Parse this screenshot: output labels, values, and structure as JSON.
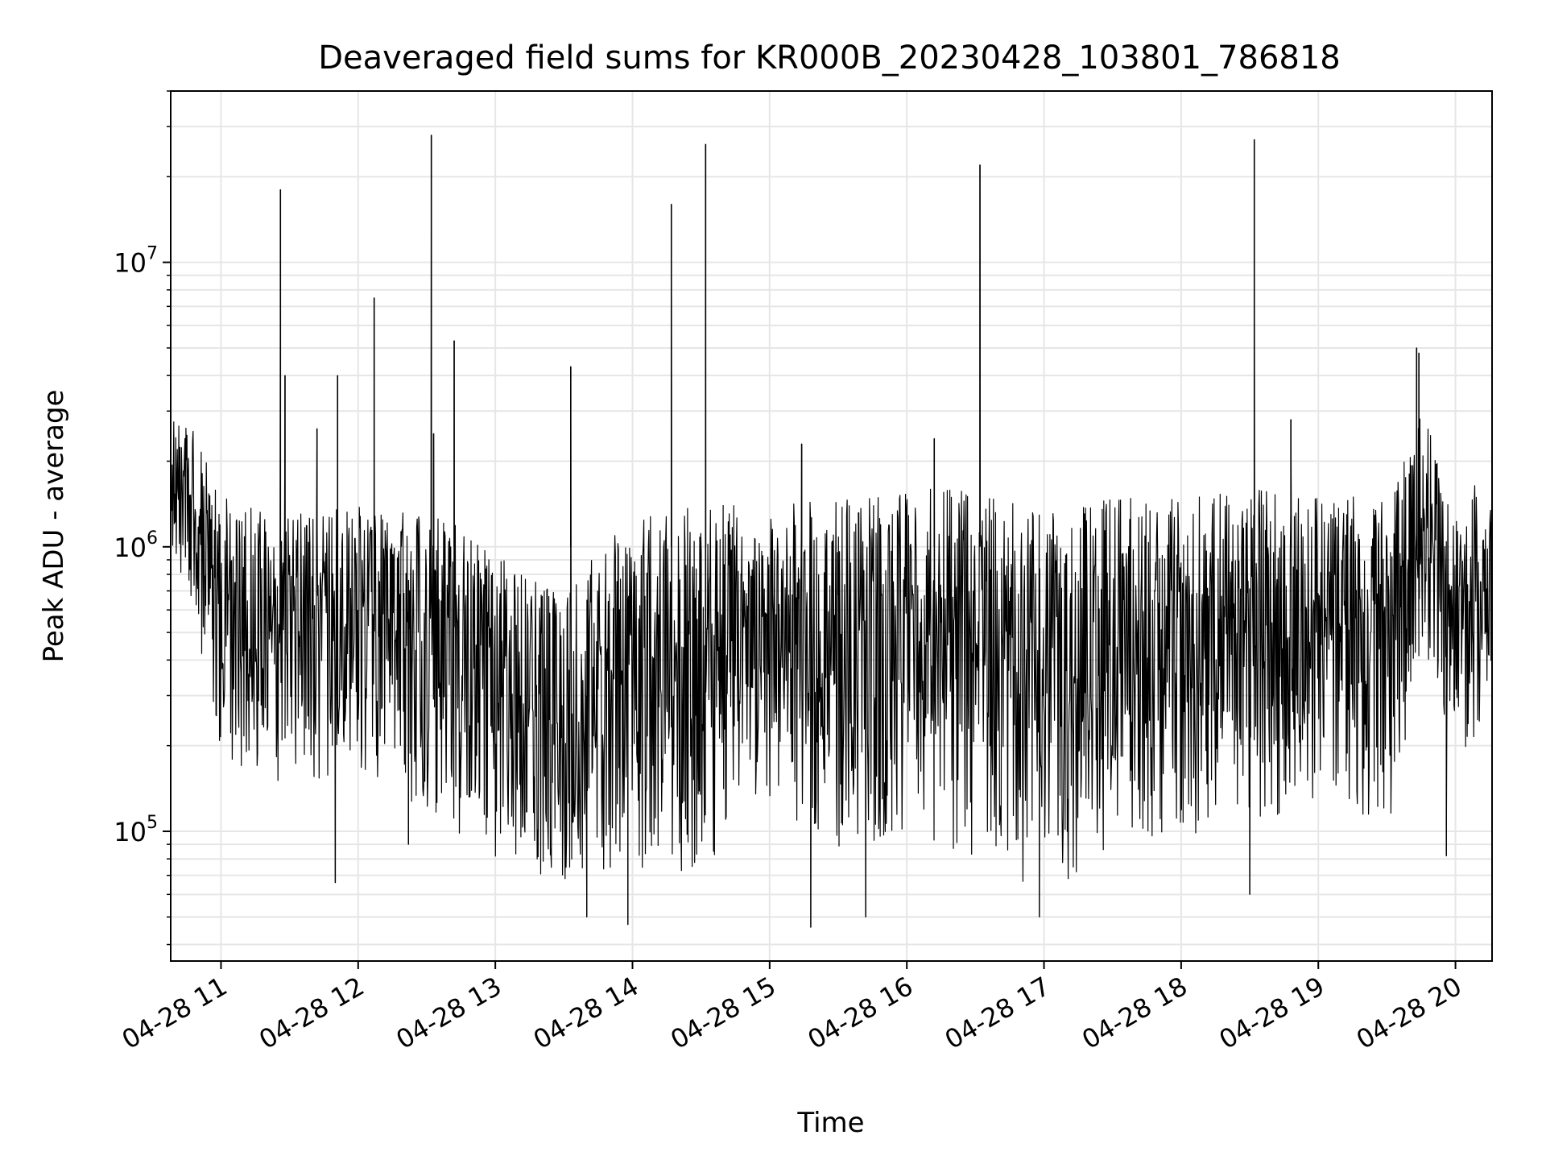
{
  "chart_data": {
    "type": "line",
    "title": "Deaveraged field sums for KR000B_20230428_103801_786818",
    "xlabel": "Time",
    "ylabel": "Peak ADU - average",
    "yscale": "log",
    "ylim": [
      35000,
      40000000
    ],
    "xlim": [
      "2023-04-28 10:38",
      "2023-04-28 20:16"
    ],
    "grid": true,
    "line_color": "#000000",
    "x_ticks": [
      {
        "value": "2023-04-28 11:00",
        "label": "04-28 11"
      },
      {
        "value": "2023-04-28 12:00",
        "label": "04-28 12"
      },
      {
        "value": "2023-04-28 13:00",
        "label": "04-28 13"
      },
      {
        "value": "2023-04-28 14:00",
        "label": "04-28 14"
      },
      {
        "value": "2023-04-28 15:00",
        "label": "04-28 15"
      },
      {
        "value": "2023-04-28 16:00",
        "label": "04-28 16"
      },
      {
        "value": "2023-04-28 17:00",
        "label": "04-28 17"
      },
      {
        "value": "2023-04-28 18:00",
        "label": "04-28 18"
      },
      {
        "value": "2023-04-28 19:00",
        "label": "04-28 19"
      },
      {
        "value": "2023-04-28 20:00",
        "label": "04-28 20"
      }
    ],
    "y_ticks": [
      {
        "value": 100000,
        "base": "10",
        "exp": "5"
      },
      {
        "value": 1000000,
        "base": "10",
        "exp": "6"
      },
      {
        "value": 10000000,
        "base": "10",
        "exp": "7"
      }
    ],
    "envelope": [
      {
        "time": "2023-04-28 10:38",
        "low": 1000000,
        "high": 2800000
      },
      {
        "time": "2023-04-28 10:48",
        "low": 600000,
        "high": 2600000
      },
      {
        "time": "2023-04-28 11:00",
        "low": 180000,
        "high": 1500000
      },
      {
        "time": "2023-04-28 11:30",
        "low": 140000,
        "high": 1300000
      },
      {
        "time": "2023-04-28 12:00",
        "low": 160000,
        "high": 1400000
      },
      {
        "time": "2023-04-28 12:30",
        "low": 110000,
        "high": 1300000
      },
      {
        "time": "2023-04-28 13:00",
        "low": 80000,
        "high": 1100000
      },
      {
        "time": "2023-04-28 13:30",
        "low": 60000,
        "high": 700000
      },
      {
        "time": "2023-04-28 14:00",
        "low": 70000,
        "high": 1300000
      },
      {
        "time": "2023-04-28 14:30",
        "low": 70000,
        "high": 1400000
      },
      {
        "time": "2023-04-28 15:00",
        "low": 120000,
        "high": 1400000
      },
      {
        "time": "2023-04-28 15:30",
        "low": 80000,
        "high": 1500000
      },
      {
        "time": "2023-04-28 16:00",
        "low": 90000,
        "high": 1600000
      },
      {
        "time": "2023-04-28 16:30",
        "low": 80000,
        "high": 1600000
      },
      {
        "time": "2023-04-28 17:00",
        "low": 60000,
        "high": 1300000
      },
      {
        "time": "2023-04-28 17:30",
        "low": 80000,
        "high": 1500000
      },
      {
        "time": "2023-04-28 18:00",
        "low": 90000,
        "high": 1500000
      },
      {
        "time": "2023-04-28 18:30",
        "low": 110000,
        "high": 1600000
      },
      {
        "time": "2023-04-28 19:00",
        "low": 120000,
        "high": 1500000
      },
      {
        "time": "2023-04-28 19:30",
        "low": 100000,
        "high": 1500000
      },
      {
        "time": "2023-04-28 19:45",
        "low": 300000,
        "high": 3000000
      },
      {
        "time": "2023-04-28 20:00",
        "low": 150000,
        "high": 1500000
      },
      {
        "time": "2023-04-28 20:16",
        "low": 250000,
        "high": 1800000
      }
    ],
    "spikes": [
      {
        "time": "2023-04-28 11:26",
        "value": 18000000
      },
      {
        "time": "2023-04-28 11:28",
        "value": 4000000
      },
      {
        "time": "2023-04-28 11:42",
        "value": 2600000
      },
      {
        "time": "2023-04-28 11:51",
        "value": 4000000
      },
      {
        "time": "2023-04-28 12:07",
        "value": 7500000
      },
      {
        "time": "2023-04-28 12:32",
        "value": 28000000
      },
      {
        "time": "2023-04-28 12:33",
        "value": 2500000
      },
      {
        "time": "2023-04-28 12:42",
        "value": 5300000
      },
      {
        "time": "2023-04-28 13:33",
        "value": 4300000
      },
      {
        "time": "2023-04-28 14:17",
        "value": 16000000
      },
      {
        "time": "2023-04-28 14:32",
        "value": 26000000
      },
      {
        "time": "2023-04-28 15:14",
        "value": 2300000
      },
      {
        "time": "2023-04-28 16:12",
        "value": 2400000
      },
      {
        "time": "2023-04-28 16:32",
        "value": 22000000
      },
      {
        "time": "2023-04-28 18:32",
        "value": 27000000
      },
      {
        "time": "2023-04-28 18:48",
        "value": 2800000
      },
      {
        "time": "2023-04-28 19:43",
        "value": 5000000
      },
      {
        "time": "2023-04-28 19:44",
        "value": 4800000
      }
    ],
    "dips": [
      {
        "time": "2023-04-28 11:50",
        "value": 66000
      },
      {
        "time": "2023-04-28 12:22",
        "value": 90000
      },
      {
        "time": "2023-04-28 13:40",
        "value": 50000
      },
      {
        "time": "2023-04-28 13:58",
        "value": 47000
      },
      {
        "time": "2023-04-28 15:18",
        "value": 46000
      },
      {
        "time": "2023-04-28 15:42",
        "value": 50000
      },
      {
        "time": "2023-04-28 16:58",
        "value": 50000
      },
      {
        "time": "2023-04-28 18:30",
        "value": 60000
      },
      {
        "time": "2023-04-28 19:56",
        "value": 82000
      }
    ]
  }
}
